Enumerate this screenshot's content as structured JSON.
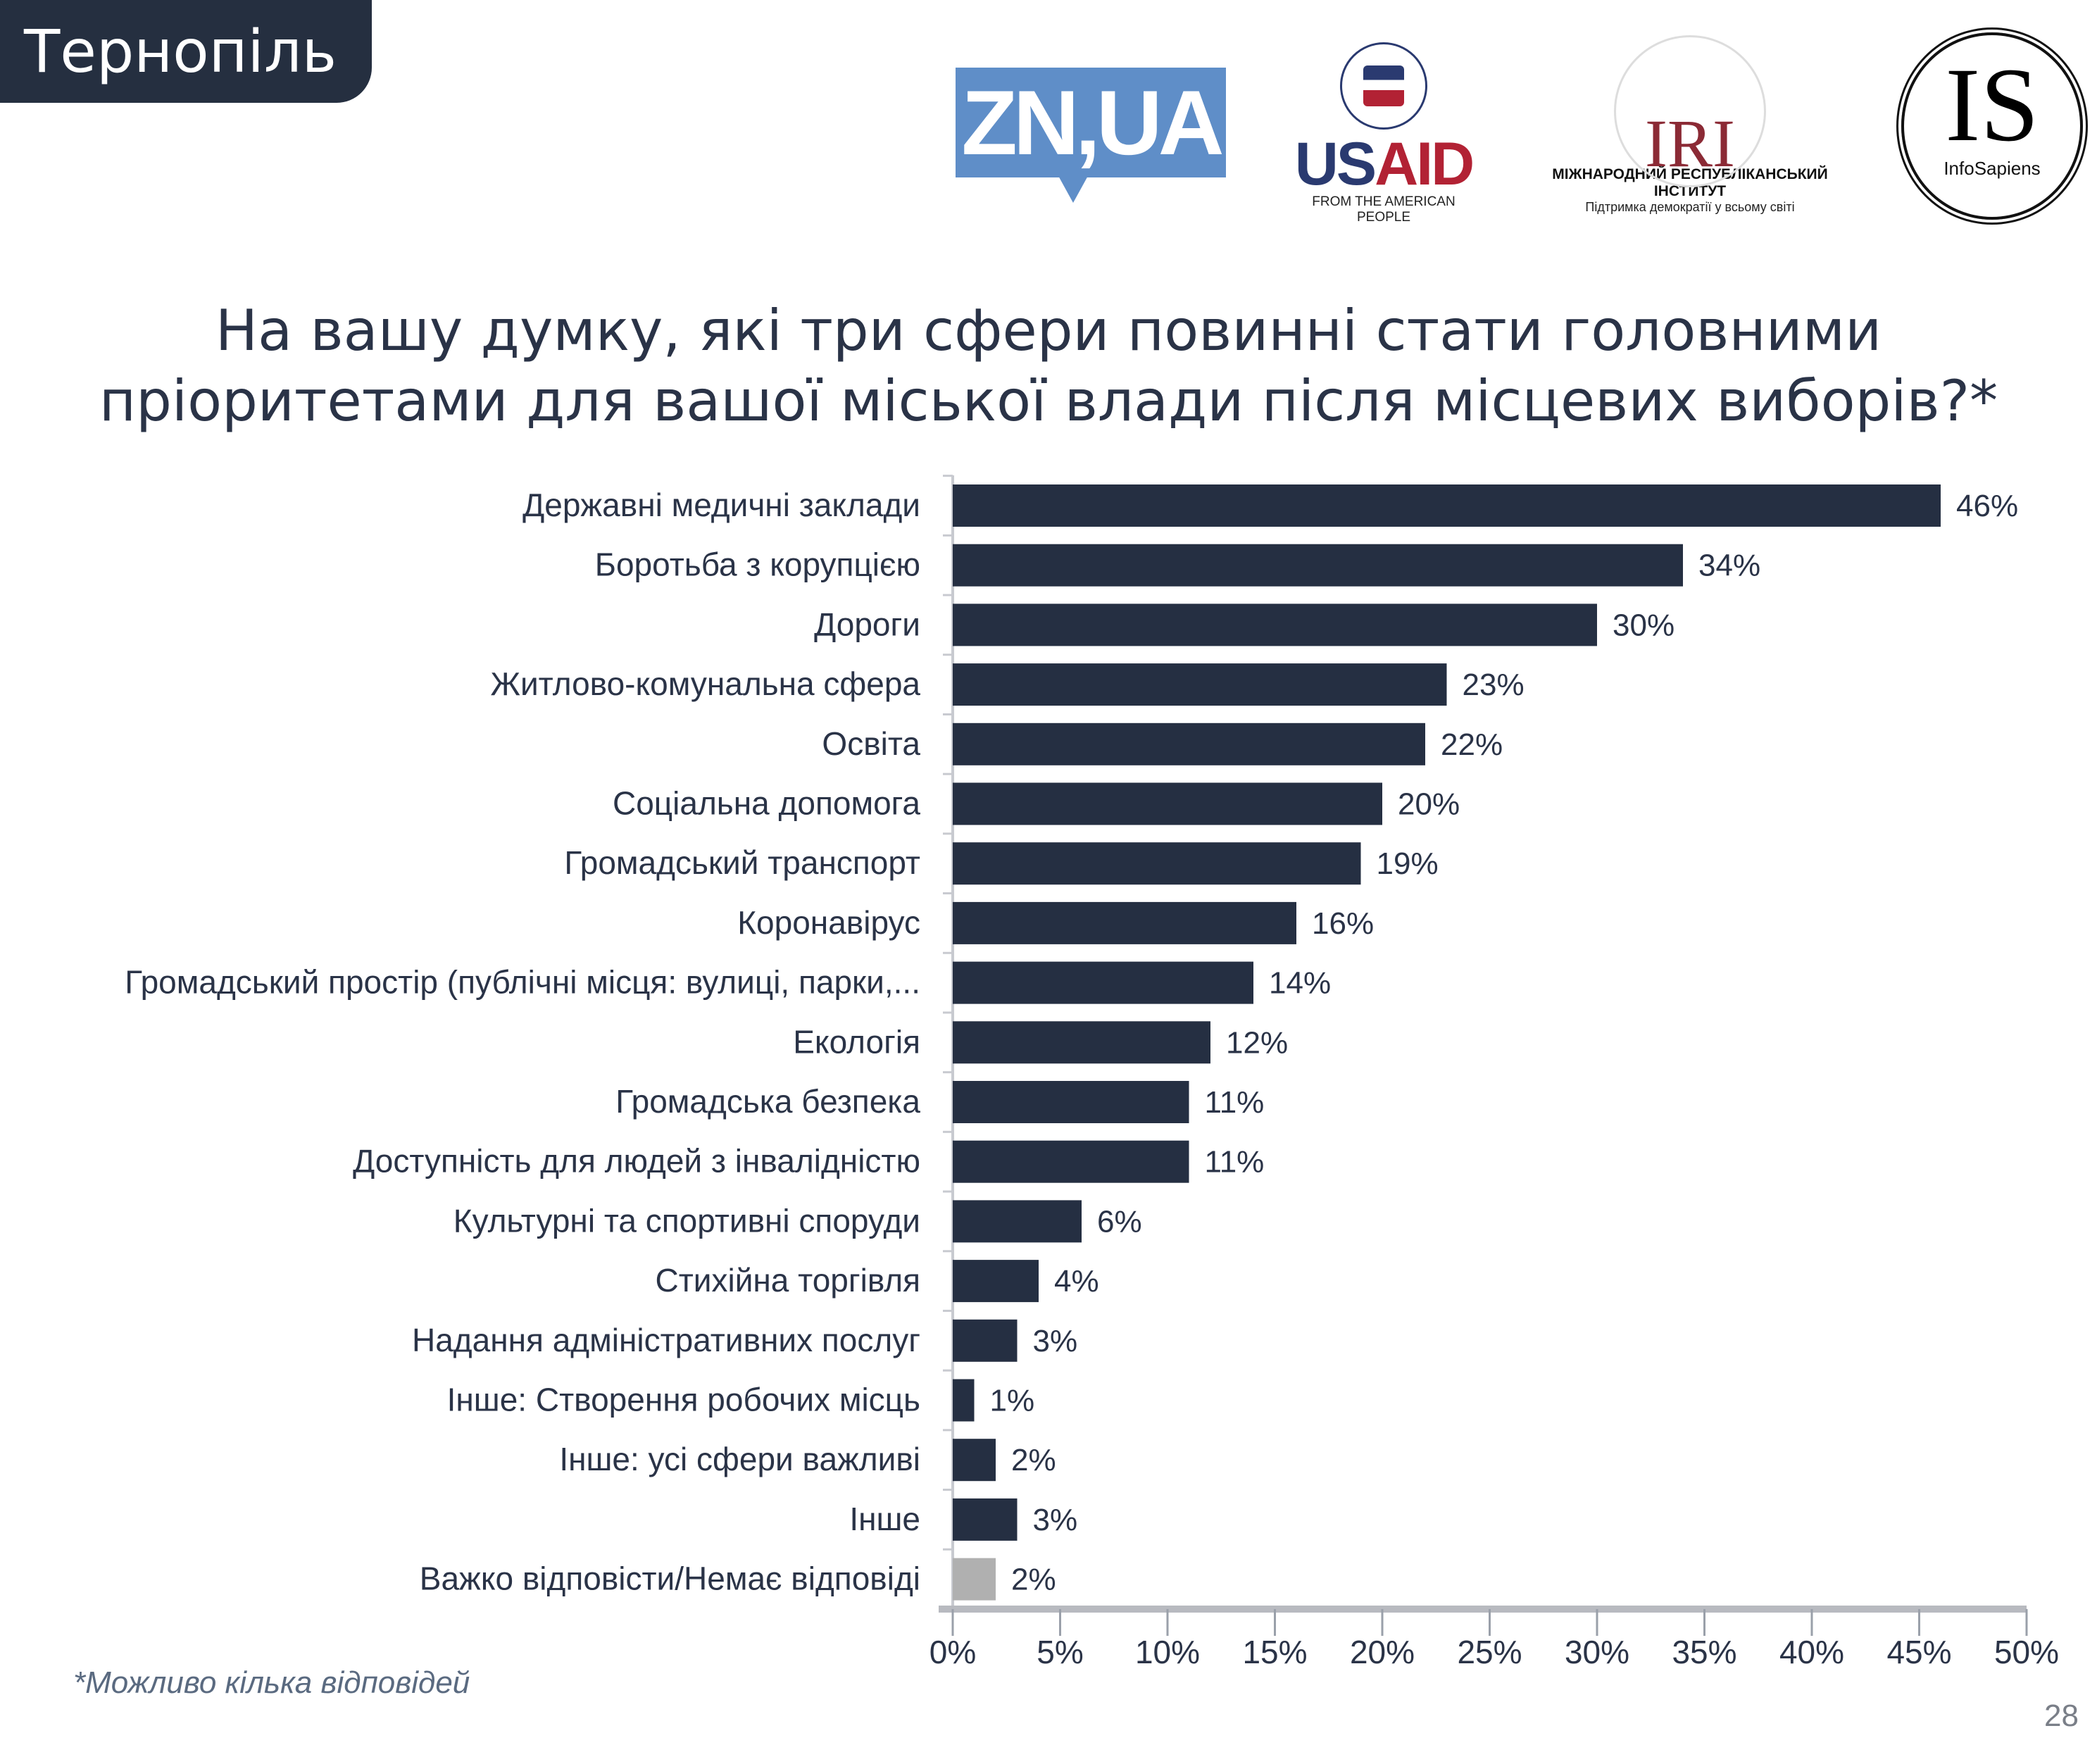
{
  "header": {
    "city": "Тернопіль"
  },
  "logos": {
    "znua": "ZN,UA",
    "usaid": {
      "word_us": "US",
      "word_aid": "AID",
      "tagline": "FROM THE AMERICAN PEOPLE"
    },
    "iri": {
      "mark": "IRI",
      "name": "МІЖНАРОДНИЙ РЕСПУБЛІКАНСЬКИЙ ІНСТИТУТ",
      "tagline": "Підтримка демократії у всьому світі"
    },
    "infosapiens": {
      "mark": "IS",
      "name": "InfoSapiens"
    }
  },
  "title_line1": "На вашу думку, які три сфери повинні стати головними",
  "title_line2": "пріоритетами для вашої міської влади після місцевих виборів?*",
  "footnote": "*Можливо кілька відповідей",
  "page_number": "28",
  "colors": {
    "bar": "#252f42",
    "bar_na": "#b0b0b0",
    "axis": "#c8cad0"
  },
  "chart_data": {
    "type": "bar",
    "orientation": "horizontal",
    "categories": [
      "Державні медичні заклади",
      "Боротьба з корупцією",
      "Дороги",
      "Житлово-комунальна сфера",
      "Освіта",
      "Соціальна допомога",
      "Громадський транспорт",
      "Коронавірус",
      "Громадський простір (публічні місця: вулиці, парки,...",
      "Екологія",
      "Громадська безпека",
      "Доступність для людей з інвалідністю",
      "Культурні та спортивні споруди",
      "Стихійна торгівля",
      "Надання адміністративних послуг",
      "Інше: Створення робочих місць",
      "Інше: усі сфери важливі",
      "Інше",
      "Важко відповісти/Немає відповіді"
    ],
    "values": [
      46,
      34,
      30,
      23,
      22,
      20,
      19,
      16,
      14,
      12,
      11,
      11,
      6,
      4,
      3,
      1,
      2,
      3,
      2
    ],
    "value_labels": [
      "46%",
      "34%",
      "30%",
      "23%",
      "22%",
      "20%",
      "19%",
      "16%",
      "14%",
      "12%",
      "11%",
      "11%",
      "6%",
      "4%",
      "3%",
      "1%",
      "2%",
      "3%",
      "2%"
    ],
    "xlim": [
      0,
      50
    ],
    "xticks": [
      "0%",
      "5%",
      "10%",
      "15%",
      "20%",
      "25%",
      "30%",
      "35%",
      "40%",
      "45%",
      "50%"
    ],
    "grid": false
  }
}
